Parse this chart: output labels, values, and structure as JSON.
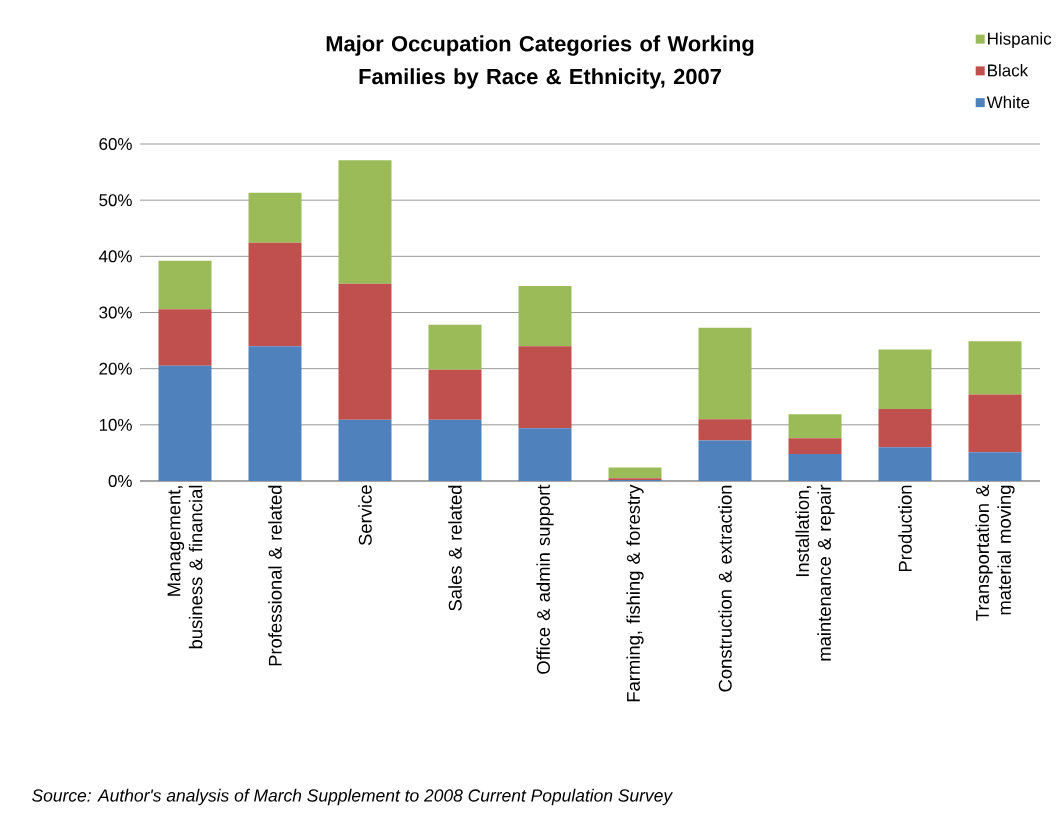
{
  "chart_data": {
    "type": "bar",
    "stacked": true,
    "title": "Major Occupation Categories of Working Families by Race & Ethnicity, 2007",
    "categories": [
      "Management, business & financial",
      "Professional & related",
      "Service",
      "Sales & related",
      "Office & admin support",
      "Farming, fishing & forestry",
      "Construction & extraction",
      "Installation,  maintenance & repair",
      "Production",
      "Transportation & material moving"
    ],
    "series": [
      {
        "name": "White",
        "color": "#4f81bd",
        "values": [
          20.5,
          24.0,
          10.9,
          10.9,
          9.4,
          0.2,
          7.2,
          4.8,
          6.0,
          5.1
        ]
      },
      {
        "name": "Black",
        "color": "#c0504d",
        "values": [
          10.1,
          18.4,
          24.2,
          8.9,
          14.6,
          0.3,
          3.8,
          2.8,
          6.8,
          10.3
        ]
      },
      {
        "name": "Hispanic",
        "color": "#9bbb59",
        "values": [
          8.6,
          8.9,
          22.0,
          8.0,
          10.7,
          1.9,
          16.3,
          4.3,
          10.6,
          9.5
        ]
      }
    ],
    "ylim": [
      0,
      60
    ],
    "yticks": [
      {
        "value": 0,
        "label": "0%"
      },
      {
        "value": 10,
        "label": "10%"
      },
      {
        "value": 20,
        "label": "20%"
      },
      {
        "value": 30,
        "label": "30%"
      },
      {
        "value": 40,
        "label": "40%"
      },
      {
        "value": 50,
        "label": "50%"
      },
      {
        "value": 60,
        "label": "60%"
      }
    ],
    "grid": "y",
    "legend": "top right",
    "annotations": [
      "Source: Author's analysis of March Supplement to 2008 Current Population Survey"
    ]
  }
}
